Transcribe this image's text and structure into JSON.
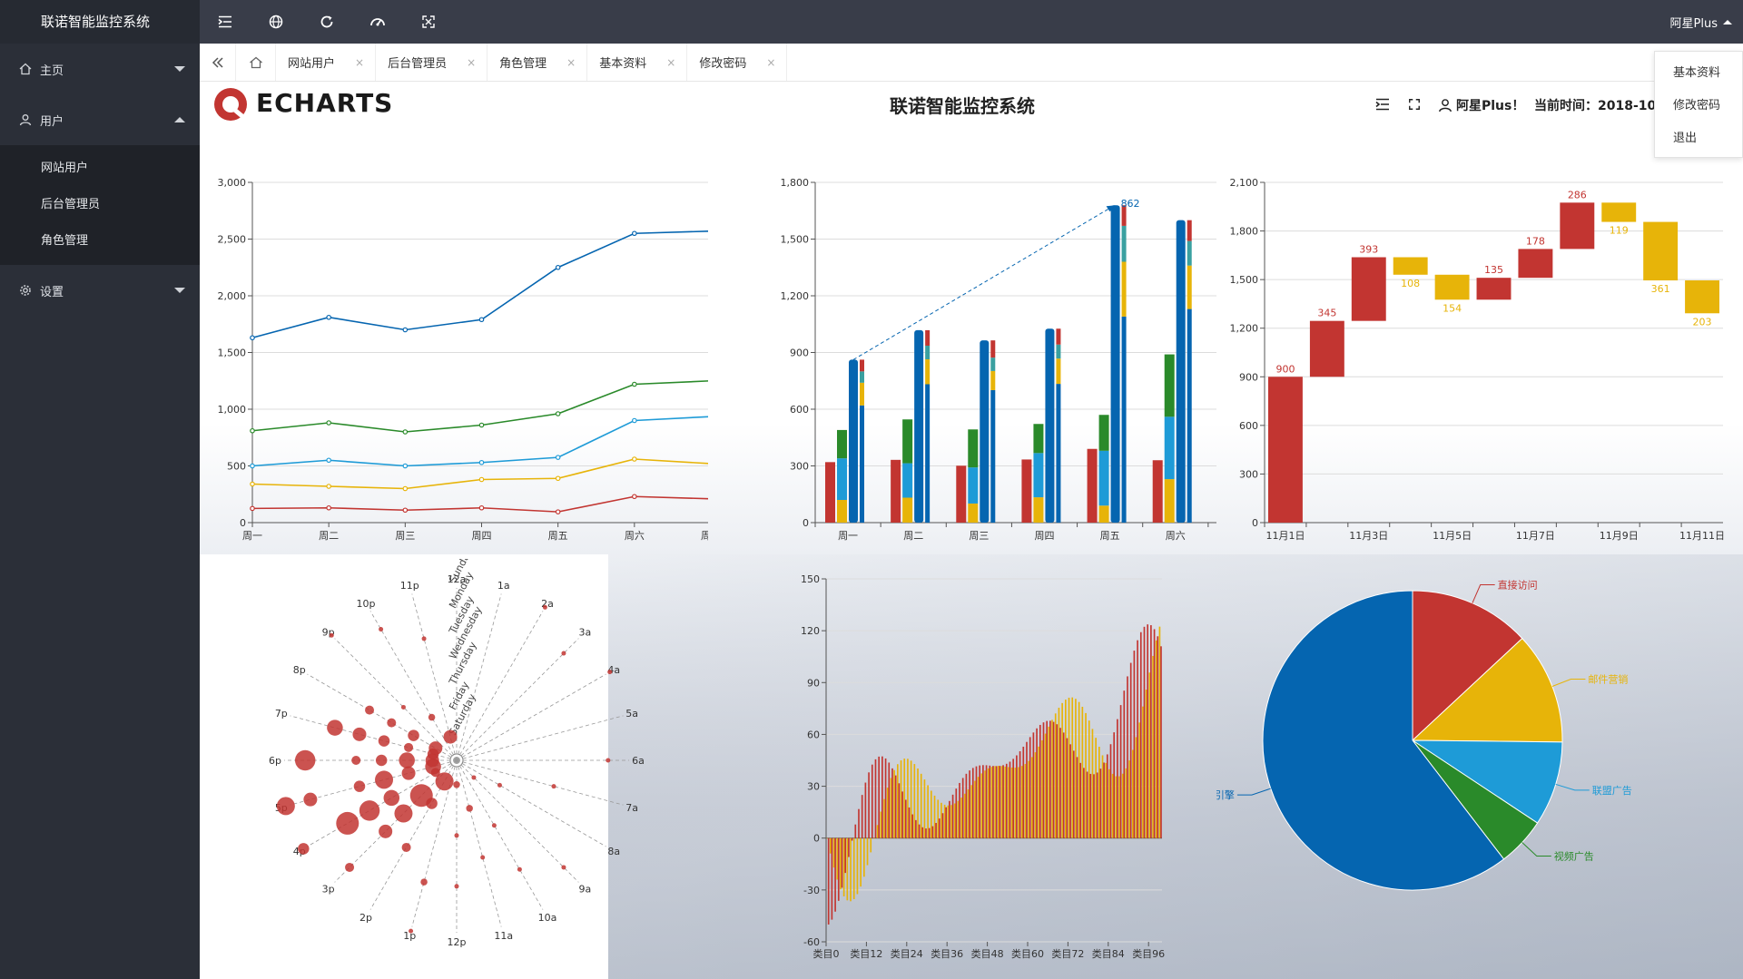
{
  "app": {
    "title": "联诺智能监控系统"
  },
  "sidebar": {
    "items": [
      {
        "label": "主页",
        "icon": "home-icon",
        "expanded": false
      },
      {
        "label": "用户",
        "icon": "user-icon",
        "expanded": true,
        "children": [
          "网站用户",
          "后台管理员",
          "角色管理"
        ]
      },
      {
        "label": "设置",
        "icon": "gear-icon",
        "expanded": false
      }
    ]
  },
  "topbar": {
    "icons": [
      "menu-toggle-icon",
      "globe-icon",
      "refresh-icon",
      "dashboard-icon",
      "fullscreen-icon"
    ],
    "user": "阿星Plus"
  },
  "tabs": {
    "items": [
      "网站用户",
      "后台管理员",
      "角色管理",
      "基本资料",
      "修改密码"
    ],
    "close": "×"
  },
  "user_menu": {
    "items": [
      "基本资料",
      "修改密码",
      "退出"
    ]
  },
  "page_header": {
    "logo_text": "ECHARTS",
    "title": "联诺智能监控系统",
    "user": "阿星Plus！",
    "time_label": "当前时间：2018-10-"
  },
  "colors": {
    "red": "#c23531",
    "blue": "#0565b0",
    "green": "#2a8a2a",
    "lightblue": "#1e9bd7",
    "yellow": "#e7b409",
    "teal": "#3aa0a0",
    "sidebar": "#2b2f38",
    "topbar": "#393d49"
  },
  "chart_data": [
    {
      "type": "line",
      "categories": [
        "周一",
        "周二",
        "周三",
        "周四",
        "周五",
        "周六",
        "周日"
      ],
      "ylim": [
        0,
        3000
      ],
      "yticks": [
        "0",
        "500",
        "1,000",
        "1,500",
        "2,000",
        "2,500",
        "3,000"
      ],
      "series": [
        {
          "color": "#0565b0",
          "values": [
            1630,
            1810,
            1700,
            1790,
            2250,
            2550,
            2570
          ]
        },
        {
          "color": "#2a8a2a",
          "values": [
            810,
            880,
            800,
            860,
            960,
            1220,
            1250
          ]
        },
        {
          "color": "#1e9bd7",
          "values": [
            500,
            550,
            500,
            530,
            575,
            900,
            935
          ]
        },
        {
          "color": "#e7b409",
          "values": [
            340,
            320,
            300,
            380,
            390,
            560,
            520
          ]
        },
        {
          "color": "#c23531",
          "values": [
            125,
            130,
            110,
            130,
            95,
            230,
            210
          ]
        }
      ]
    },
    {
      "type": "bar",
      "categories": [
        "周一",
        "周二",
        "周三",
        "周四",
        "周五",
        "周六",
        "周日"
      ],
      "ylim": [
        0,
        1800
      ],
      "yticks": [
        "0",
        "300",
        "600",
        "900",
        "1,200",
        "1,500",
        "1,800"
      ],
      "single": [
        320,
        332,
        301,
        334,
        390,
        330,
        320
      ],
      "stack_group": [
        {
          "color": "#e7b409",
          "values": [
            120,
            132,
            101,
            134,
            90,
            230,
            210
          ]
        },
        {
          "color": "#1e9bd7",
          "values": [
            220,
            182,
            191,
            234,
            290,
            330,
            310
          ]
        },
        {
          "color": "#2a8a2a",
          "values": [
            150,
            232,
            201,
            154,
            190,
            330,
            410
          ]
        }
      ],
      "total_bar": [
        862,
        1018,
        964,
        1026,
        1679,
        1600,
        1570
      ],
      "mini_stack": [
        {
          "color": "#0565b0",
          "values": [
            620,
            732,
            701,
            734,
            1090,
            1130,
            1120
          ]
        },
        {
          "color": "#e7b409",
          "values": [
            120,
            132,
            101,
            134,
            290,
            230,
            220
          ]
        },
        {
          "color": "#3aa0a0",
          "values": [
            60,
            72,
            71,
            74,
            190,
            130,
            110
          ]
        },
        {
          "color": "#c23531",
          "values": [
            62,
            82,
            91,
            84,
            109,
            110,
            120
          ]
        }
      ],
      "annotation": {
        "from": 0,
        "to": 4,
        "value": "862"
      }
    },
    {
      "type": "bar",
      "subtype": "waterfall",
      "categories": [
        "11月1日",
        "11月2日",
        "11月3日",
        "11月4日",
        "11月5日",
        "11月6日",
        "11月7日",
        "11月8日",
        "11月9日",
        "11月10日",
        "11月11日"
      ],
      "xticks": [
        "11月1日",
        "11月3日",
        "11月5日",
        "11月7日",
        "11月9日",
        "11月11日"
      ],
      "ylim": [
        0,
        2100
      ],
      "yticks": [
        "0",
        "300",
        "600",
        "900",
        "1,200",
        "1,500",
        "1,800",
        "2,100"
      ],
      "bars": [
        {
          "base": 0,
          "value": 900,
          "label": "900",
          "dir": "up"
        },
        {
          "base": 900,
          "value": 345,
          "label": "345",
          "dir": "up"
        },
        {
          "base": 1245,
          "value": 393,
          "label": "393",
          "dir": "up"
        },
        {
          "base": 1530,
          "value": 108,
          "label": "108",
          "dir": "down"
        },
        {
          "base": 1376,
          "value": 154,
          "label": "154",
          "dir": "down"
        },
        {
          "base": 1376,
          "value": 135,
          "label": "135",
          "dir": "up"
        },
        {
          "base": 1511,
          "value": 178,
          "label": "178",
          "dir": "up"
        },
        {
          "base": 1689,
          "value": 286,
          "label": "286",
          "dir": "up"
        },
        {
          "base": 1856,
          "value": 119,
          "label": "119",
          "dir": "down"
        },
        {
          "base": 1495,
          "value": 361,
          "label": "361",
          "dir": "down"
        },
        {
          "base": 1292,
          "value": 203,
          "label": "203",
          "dir": "down"
        }
      ]
    },
    {
      "type": "scatter",
      "subtype": "punchcard-polar",
      "hours": [
        "12a",
        "1a",
        "2a",
        "3a",
        "4a",
        "5a",
        "6a",
        "7a",
        "8a",
        "9a",
        "10a",
        "11a",
        "12p",
        "1p",
        "2p",
        "3p",
        "4p",
        "5p",
        "6p",
        "7p",
        "8p",
        "9p",
        "10p",
        "11p"
      ],
      "days": [
        "Saturday",
        "Friday",
        "Thursday",
        "Wednesday",
        "Tuesday",
        "Monday",
        "Sunday"
      ],
      "points": [
        [
          0,
          23,
          6
        ],
        [
          1,
          22,
          3
        ],
        [
          2,
          21,
          2
        ],
        [
          3,
          20,
          4
        ],
        [
          4,
          19,
          7
        ],
        [
          5,
          18,
          9
        ],
        [
          6,
          17,
          8
        ],
        [
          5,
          17,
          6
        ],
        [
          4,
          16,
          10
        ],
        [
          3,
          16,
          9
        ],
        [
          2,
          16,
          7
        ],
        [
          6,
          16,
          5
        ],
        [
          1,
          15,
          10
        ],
        [
          2,
          15,
          8
        ],
        [
          3,
          15,
          6
        ],
        [
          5,
          15,
          4
        ],
        [
          0,
          14,
          8
        ],
        [
          1,
          14,
          5
        ],
        [
          3,
          14,
          4
        ],
        [
          4,
          13,
          3
        ],
        [
          6,
          13,
          2
        ],
        [
          0,
          12,
          3
        ],
        [
          2,
          12,
          2
        ],
        [
          4,
          12,
          2
        ],
        [
          1,
          11,
          3
        ],
        [
          3,
          11,
          2
        ],
        [
          2,
          10,
          2
        ],
        [
          4,
          10,
          2
        ],
        [
          0,
          9,
          2
        ],
        [
          5,
          9,
          2
        ],
        [
          1,
          8,
          2
        ],
        [
          3,
          7,
          2
        ],
        [
          0,
          19,
          5
        ],
        [
          1,
          19,
          4
        ],
        [
          2,
          19,
          5
        ],
        [
          3,
          19,
          6
        ],
        [
          0,
          18,
          6
        ],
        [
          1,
          18,
          7
        ],
        [
          2,
          18,
          5
        ],
        [
          3,
          18,
          4
        ],
        [
          0,
          17,
          7
        ],
        [
          1,
          17,
          6
        ],
        [
          2,
          17,
          8
        ],
        [
          3,
          17,
          5
        ],
        [
          0,
          20,
          6
        ],
        [
          1,
          20,
          5
        ],
        [
          2,
          20,
          4
        ],
        [
          0,
          16,
          4
        ],
        [
          6,
          21,
          2
        ],
        [
          5,
          22,
          2
        ],
        [
          4,
          23,
          2
        ],
        [
          5,
          3,
          2
        ],
        [
          6,
          2,
          2
        ],
        [
          6,
          4,
          2
        ],
        [
          5,
          6,
          2
        ]
      ]
    },
    {
      "type": "bar",
      "subtype": "dual-series",
      "xticks": [
        "类目0",
        "类目12",
        "类目24",
        "类目36",
        "类目48",
        "类目60",
        "类目72",
        "类目84",
        "类目96"
      ],
      "count": 100,
      "ylim": [
        -60,
        150
      ],
      "yticks": [
        "-60",
        "-30",
        "0",
        "30",
        "60",
        "90",
        "120",
        "150"
      ],
      "series": [
        {
          "color": "#e7b409",
          "formula": "yellow"
        },
        {
          "color": "#c23531",
          "formula": "red"
        }
      ]
    },
    {
      "type": "pie",
      "slices": [
        {
          "name": "直接访问",
          "value": 335,
          "color": "#c23531"
        },
        {
          "name": "邮件营销",
          "value": 310,
          "color": "#e7b409"
        },
        {
          "name": "联盟广告",
          "value": 234,
          "color": "#1e9bd7"
        },
        {
          "name": "视频广告",
          "value": 135,
          "color": "#2a8a2a"
        },
        {
          "name": "搜索引擎",
          "value": 1548,
          "color": "#0565b0"
        }
      ]
    }
  ]
}
